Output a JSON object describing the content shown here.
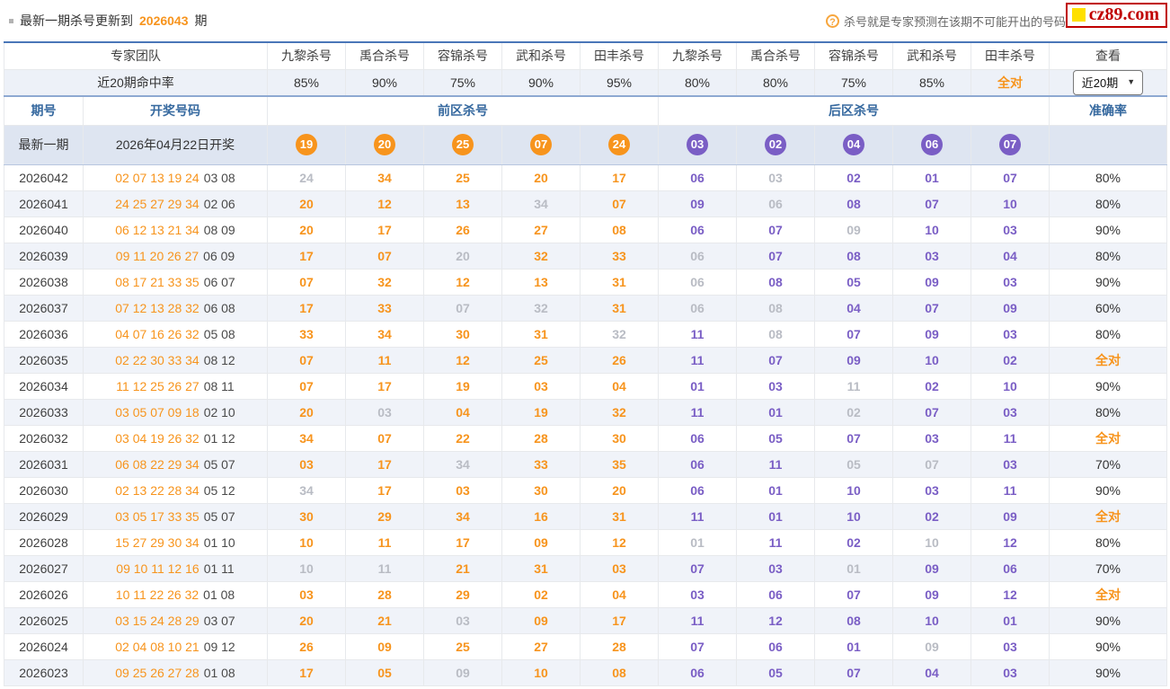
{
  "topbar": {
    "notice_prefix": "最新一期杀号更新到",
    "notice_issue": "2026043",
    "notice_suffix": "期",
    "help_icon_glyph": "?",
    "help_text": "杀号就是专家预测在该期不可能开出的号码",
    "logo_text": "cz89.com"
  },
  "colors": {
    "accent_orange": "#f7941d",
    "back_purple": "#7a5ec5",
    "miss_gray": "#b9bcc4",
    "header_blue": "#36699f",
    "latest_row_bg": "#dee5f1",
    "stripe_bg": "#f0f3f9",
    "logo_red": "#c00000",
    "logo_yellow": "#ffe000"
  },
  "table": {
    "team_header": "专家团队",
    "expert_headers": [
      "九黎杀号",
      "禹合杀号",
      "容锦杀号",
      "武和杀号",
      "田丰杀号",
      "九黎杀号",
      "禹合杀号",
      "容锦杀号",
      "武和杀号",
      "田丰杀号"
    ],
    "view_header": "查看",
    "hit_rate_label": "近20期命中率",
    "hit_rates": [
      "85%",
      "90%",
      "75%",
      "90%",
      "95%",
      "80%",
      "80%",
      "75%",
      "85%",
      "全对"
    ],
    "range_select": {
      "value": "近20期",
      "chevron": "▼"
    },
    "col_headers": {
      "period": "期号",
      "draw": "开奖号码",
      "front": "前区杀号",
      "back": "后区杀号",
      "accuracy": "准确率"
    },
    "latest": {
      "label": "最新一期",
      "date": "2026年04月22日开奖",
      "front_balls": [
        "19",
        "20",
        "25",
        "07",
        "24"
      ],
      "back_balls": [
        "03",
        "02",
        "04",
        "06",
        "07"
      ]
    },
    "rows": [
      {
        "period": "2026042",
        "draw_front": "02 07 13 19 24",
        "draw_back": "03 08",
        "front_kills": [
          [
            "24",
            false
          ],
          [
            "34",
            true
          ],
          [
            "25",
            true
          ],
          [
            "20",
            true
          ],
          [
            "17",
            true
          ]
        ],
        "back_kills": [
          [
            "06",
            true
          ],
          [
            "03",
            false
          ],
          [
            "02",
            true
          ],
          [
            "01",
            true
          ],
          [
            "07",
            true
          ]
        ],
        "accuracy": "80%"
      },
      {
        "period": "2026041",
        "draw_front": "24 25 27 29 34",
        "draw_back": "02 06",
        "front_kills": [
          [
            "20",
            true
          ],
          [
            "12",
            true
          ],
          [
            "13",
            true
          ],
          [
            "34",
            false
          ],
          [
            "07",
            true
          ]
        ],
        "back_kills": [
          [
            "09",
            true
          ],
          [
            "06",
            false
          ],
          [
            "08",
            true
          ],
          [
            "07",
            true
          ],
          [
            "10",
            true
          ]
        ],
        "accuracy": "80%"
      },
      {
        "period": "2026040",
        "draw_front": "06 12 13 21 34",
        "draw_back": "08 09",
        "front_kills": [
          [
            "20",
            true
          ],
          [
            "17",
            true
          ],
          [
            "26",
            true
          ],
          [
            "27",
            true
          ],
          [
            "08",
            true
          ]
        ],
        "back_kills": [
          [
            "06",
            true
          ],
          [
            "07",
            true
          ],
          [
            "09",
            false
          ],
          [
            "10",
            true
          ],
          [
            "03",
            true
          ]
        ],
        "accuracy": "90%"
      },
      {
        "period": "2026039",
        "draw_front": "09 11 20 26 27",
        "draw_back": "06 09",
        "front_kills": [
          [
            "17",
            true
          ],
          [
            "07",
            true
          ],
          [
            "20",
            false
          ],
          [
            "32",
            true
          ],
          [
            "33",
            true
          ]
        ],
        "back_kills": [
          [
            "06",
            false
          ],
          [
            "07",
            true
          ],
          [
            "08",
            true
          ],
          [
            "03",
            true
          ],
          [
            "04",
            true
          ]
        ],
        "accuracy": "80%"
      },
      {
        "period": "2026038",
        "draw_front": "08 17 21 33 35",
        "draw_back": "06 07",
        "front_kills": [
          [
            "07",
            true
          ],
          [
            "32",
            true
          ],
          [
            "12",
            true
          ],
          [
            "13",
            true
          ],
          [
            "31",
            true
          ]
        ],
        "back_kills": [
          [
            "06",
            false
          ],
          [
            "08",
            true
          ],
          [
            "05",
            true
          ],
          [
            "09",
            true
          ],
          [
            "03",
            true
          ]
        ],
        "accuracy": "90%"
      },
      {
        "period": "2026037",
        "draw_front": "07 12 13 28 32",
        "draw_back": "06 08",
        "front_kills": [
          [
            "17",
            true
          ],
          [
            "33",
            true
          ],
          [
            "07",
            false
          ],
          [
            "32",
            false
          ],
          [
            "31",
            true
          ]
        ],
        "back_kills": [
          [
            "06",
            false
          ],
          [
            "08",
            false
          ],
          [
            "04",
            true
          ],
          [
            "07",
            true
          ],
          [
            "09",
            true
          ]
        ],
        "accuracy": "60%"
      },
      {
        "period": "2026036",
        "draw_front": "04 07 16 26 32",
        "draw_back": "05 08",
        "front_kills": [
          [
            "33",
            true
          ],
          [
            "34",
            true
          ],
          [
            "30",
            true
          ],
          [
            "31",
            true
          ],
          [
            "32",
            false
          ]
        ],
        "back_kills": [
          [
            "11",
            true
          ],
          [
            "08",
            false
          ],
          [
            "07",
            true
          ],
          [
            "09",
            true
          ],
          [
            "03",
            true
          ]
        ],
        "accuracy": "80%"
      },
      {
        "period": "2026035",
        "draw_front": "02 22 30 33 34",
        "draw_back": "08 12",
        "front_kills": [
          [
            "07",
            true
          ],
          [
            "11",
            true
          ],
          [
            "12",
            true
          ],
          [
            "25",
            true
          ],
          [
            "26",
            true
          ]
        ],
        "back_kills": [
          [
            "11",
            true
          ],
          [
            "07",
            true
          ],
          [
            "09",
            true
          ],
          [
            "10",
            true
          ],
          [
            "02",
            true
          ]
        ],
        "accuracy": "全对"
      },
      {
        "period": "2026034",
        "draw_front": "11 12 25 26 27",
        "draw_back": "08 11",
        "front_kills": [
          [
            "07",
            true
          ],
          [
            "17",
            true
          ],
          [
            "19",
            true
          ],
          [
            "03",
            true
          ],
          [
            "04",
            true
          ]
        ],
        "back_kills": [
          [
            "01",
            true
          ],
          [
            "03",
            true
          ],
          [
            "11",
            false
          ],
          [
            "02",
            true
          ],
          [
            "10",
            true
          ]
        ],
        "accuracy": "90%"
      },
      {
        "period": "2026033",
        "draw_front": "03 05 07 09 18",
        "draw_back": "02 10",
        "front_kills": [
          [
            "20",
            true
          ],
          [
            "03",
            false
          ],
          [
            "04",
            true
          ],
          [
            "19",
            true
          ],
          [
            "32",
            true
          ]
        ],
        "back_kills": [
          [
            "11",
            true
          ],
          [
            "01",
            true
          ],
          [
            "02",
            false
          ],
          [
            "07",
            true
          ],
          [
            "03",
            true
          ]
        ],
        "accuracy": "80%"
      },
      {
        "period": "2026032",
        "draw_front": "03 04 19 26 32",
        "draw_back": "01 12",
        "front_kills": [
          [
            "34",
            true
          ],
          [
            "07",
            true
          ],
          [
            "22",
            true
          ],
          [
            "28",
            true
          ],
          [
            "30",
            true
          ]
        ],
        "back_kills": [
          [
            "06",
            true
          ],
          [
            "05",
            true
          ],
          [
            "07",
            true
          ],
          [
            "03",
            true
          ],
          [
            "11",
            true
          ]
        ],
        "accuracy": "全对"
      },
      {
        "period": "2026031",
        "draw_front": "06 08 22 29 34",
        "draw_back": "05 07",
        "front_kills": [
          [
            "03",
            true
          ],
          [
            "17",
            true
          ],
          [
            "34",
            false
          ],
          [
            "33",
            true
          ],
          [
            "35",
            true
          ]
        ],
        "back_kills": [
          [
            "06",
            true
          ],
          [
            "11",
            true
          ],
          [
            "05",
            false
          ],
          [
            "07",
            false
          ],
          [
            "03",
            true
          ]
        ],
        "accuracy": "70%"
      },
      {
        "period": "2026030",
        "draw_front": "02 13 22 28 34",
        "draw_back": "05 12",
        "front_kills": [
          [
            "34",
            false
          ],
          [
            "17",
            true
          ],
          [
            "03",
            true
          ],
          [
            "30",
            true
          ],
          [
            "20",
            true
          ]
        ],
        "back_kills": [
          [
            "06",
            true
          ],
          [
            "01",
            true
          ],
          [
            "10",
            true
          ],
          [
            "03",
            true
          ],
          [
            "11",
            true
          ]
        ],
        "accuracy": "90%"
      },
      {
        "period": "2026029",
        "draw_front": "03 05 17 33 35",
        "draw_back": "05 07",
        "front_kills": [
          [
            "30",
            true
          ],
          [
            "29",
            true
          ],
          [
            "34",
            true
          ],
          [
            "16",
            true
          ],
          [
            "31",
            true
          ]
        ],
        "back_kills": [
          [
            "11",
            true
          ],
          [
            "01",
            true
          ],
          [
            "10",
            true
          ],
          [
            "02",
            true
          ],
          [
            "09",
            true
          ]
        ],
        "accuracy": "全对"
      },
      {
        "period": "2026028",
        "draw_front": "15 27 29 30 34",
        "draw_back": "01 10",
        "front_kills": [
          [
            "10",
            true
          ],
          [
            "11",
            true
          ],
          [
            "17",
            true
          ],
          [
            "09",
            true
          ],
          [
            "12",
            true
          ]
        ],
        "back_kills": [
          [
            "01",
            false
          ],
          [
            "11",
            true
          ],
          [
            "02",
            true
          ],
          [
            "10",
            false
          ],
          [
            "12",
            true
          ]
        ],
        "accuracy": "80%"
      },
      {
        "period": "2026027",
        "draw_front": "09 10 11 12 16",
        "draw_back": "01 11",
        "front_kills": [
          [
            "10",
            false
          ],
          [
            "11",
            false
          ],
          [
            "21",
            true
          ],
          [
            "31",
            true
          ],
          [
            "03",
            true
          ]
        ],
        "back_kills": [
          [
            "07",
            true
          ],
          [
            "03",
            true
          ],
          [
            "01",
            false
          ],
          [
            "09",
            true
          ],
          [
            "06",
            true
          ]
        ],
        "accuracy": "70%"
      },
      {
        "period": "2026026",
        "draw_front": "10 11 22 26 32",
        "draw_back": "01 08",
        "front_kills": [
          [
            "03",
            true
          ],
          [
            "28",
            true
          ],
          [
            "29",
            true
          ],
          [
            "02",
            true
          ],
          [
            "04",
            true
          ]
        ],
        "back_kills": [
          [
            "03",
            true
          ],
          [
            "06",
            true
          ],
          [
            "07",
            true
          ],
          [
            "09",
            true
          ],
          [
            "12",
            true
          ]
        ],
        "accuracy": "全对"
      },
      {
        "period": "2026025",
        "draw_front": "03 15 24 28 29",
        "draw_back": "03 07",
        "front_kills": [
          [
            "20",
            true
          ],
          [
            "21",
            true
          ],
          [
            "03",
            false
          ],
          [
            "09",
            true
          ],
          [
            "17",
            true
          ]
        ],
        "back_kills": [
          [
            "11",
            true
          ],
          [
            "12",
            true
          ],
          [
            "08",
            true
          ],
          [
            "10",
            true
          ],
          [
            "01",
            true
          ]
        ],
        "accuracy": "90%"
      },
      {
        "period": "2026024",
        "draw_front": "02 04 08 10 21",
        "draw_back": "09 12",
        "front_kills": [
          [
            "26",
            true
          ],
          [
            "09",
            true
          ],
          [
            "25",
            true
          ],
          [
            "27",
            true
          ],
          [
            "28",
            true
          ]
        ],
        "back_kills": [
          [
            "07",
            true
          ],
          [
            "06",
            true
          ],
          [
            "01",
            true
          ],
          [
            "09",
            false
          ],
          [
            "03",
            true
          ]
        ],
        "accuracy": "90%"
      },
      {
        "period": "2026023",
        "draw_front": "09 25 26 27 28",
        "draw_back": "01 08",
        "front_kills": [
          [
            "17",
            true
          ],
          [
            "05",
            true
          ],
          [
            "09",
            false
          ],
          [
            "10",
            true
          ],
          [
            "08",
            true
          ]
        ],
        "back_kills": [
          [
            "06",
            true
          ],
          [
            "05",
            true
          ],
          [
            "07",
            true
          ],
          [
            "04",
            true
          ],
          [
            "03",
            true
          ]
        ],
        "accuracy": "90%"
      }
    ]
  }
}
